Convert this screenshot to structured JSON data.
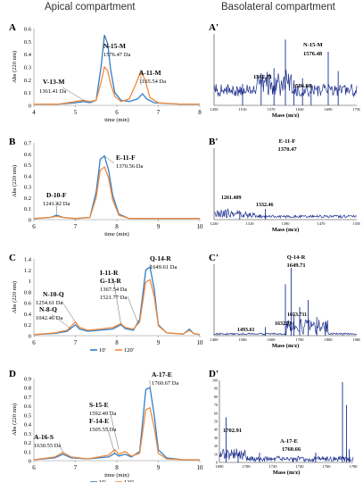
{
  "headers": {
    "left": "Apical compartment",
    "right": "Basolateral compartment"
  },
  "colors": {
    "series_10": "#2f7fc8",
    "series_120": "#f08a3c",
    "ms_line": "#1c2f8c",
    "text": "#222222"
  },
  "chart_data": [
    {
      "id": "A",
      "type": "line",
      "panel_label": "A",
      "xlabel": "time (min)",
      "ylabel": "Abs (220 nm)",
      "xlim": [
        4,
        8
      ],
      "ylim": [
        0,
        0.6
      ],
      "x_ticks": [
        "4",
        "5",
        "6",
        "7",
        "8"
      ],
      "y_ticks": [
        "0",
        "0.1",
        "0.2",
        "0.3",
        "0.4",
        "0.5",
        "0.6"
      ],
      "legend": [
        "10'",
        "120'"
      ],
      "series": [
        {
          "name": "10'",
          "points": [
            [
              4,
              0.01
            ],
            [
              4.6,
              0.01
            ],
            [
              5.0,
              0.02
            ],
            [
              5.2,
              0.03
            ],
            [
              5.35,
              0.02
            ],
            [
              5.5,
              0.04
            ],
            [
              5.62,
              0.3
            ],
            [
              5.7,
              0.55
            ],
            [
              5.78,
              0.48
            ],
            [
              5.85,
              0.28
            ],
            [
              5.95,
              0.1
            ],
            [
              6.1,
              0.04
            ],
            [
              6.3,
              0.03
            ],
            [
              6.5,
              0.05
            ],
            [
              6.62,
              0.09
            ],
            [
              6.72,
              0.05
            ],
            [
              6.9,
              0.02
            ],
            [
              7.5,
              0.01
            ],
            [
              8,
              0.01
            ]
          ]
        },
        {
          "name": "120'",
          "points": [
            [
              4,
              0.01
            ],
            [
              4.6,
              0.01
            ],
            [
              5.0,
              0.03
            ],
            [
              5.2,
              0.04
            ],
            [
              5.35,
              0.03
            ],
            [
              5.5,
              0.04
            ],
            [
              5.62,
              0.18
            ],
            [
              5.7,
              0.3
            ],
            [
              5.78,
              0.27
            ],
            [
              5.85,
              0.17
            ],
            [
              5.95,
              0.07
            ],
            [
              6.1,
              0.03
            ],
            [
              6.3,
              0.05
            ],
            [
              6.45,
              0.16
            ],
            [
              6.58,
              0.27
            ],
            [
              6.68,
              0.2
            ],
            [
              6.8,
              0.06
            ],
            [
              7.0,
              0.02
            ],
            [
              7.5,
              0.01
            ],
            [
              8,
              0.01
            ]
          ]
        }
      ],
      "annotations": [
        {
          "name": "N-15-M",
          "mass": "1576.47 Da",
          "at": [
            5.7,
            0.55
          ]
        },
        {
          "name": "A-11-M",
          "mass": "1165.54 Da",
          "at": [
            6.58,
            0.27
          ]
        },
        {
          "name": "V-13-M",
          "mass": "1361.41 Da",
          "at": [
            5.2,
            0.04
          ]
        }
      ]
    },
    {
      "id": "B",
      "type": "line",
      "panel_label": "B",
      "xlabel": "time (min)",
      "ylabel": "Abs (220 nm)",
      "xlim": [
        6,
        10
      ],
      "ylim": [
        0,
        0.7
      ],
      "x_ticks": [
        "6",
        "7",
        "8",
        "9",
        "10"
      ],
      "y_ticks": [
        "0",
        "0.1",
        "0.2",
        "0.3",
        "0.4",
        "0.5",
        "0.6",
        "0.7"
      ],
      "legend": [
        "10'",
        "120'"
      ],
      "series": [
        {
          "name": "10'",
          "points": [
            [
              6,
              0.01
            ],
            [
              6.4,
              0.02
            ],
            [
              6.55,
              0.04
            ],
            [
              6.7,
              0.02
            ],
            [
              7.0,
              0.01
            ],
            [
              7.35,
              0.02
            ],
            [
              7.5,
              0.25
            ],
            [
              7.6,
              0.55
            ],
            [
              7.7,
              0.58
            ],
            [
              7.8,
              0.45
            ],
            [
              7.9,
              0.22
            ],
            [
              8.05,
              0.05
            ],
            [
              8.3,
              0.01
            ],
            [
              9,
              0.01
            ],
            [
              10,
              0.01
            ]
          ]
        },
        {
          "name": "120'",
          "points": [
            [
              6,
              0.01
            ],
            [
              6.4,
              0.02
            ],
            [
              6.55,
              0.03
            ],
            [
              6.7,
              0.02
            ],
            [
              7.0,
              0.01
            ],
            [
              7.35,
              0.02
            ],
            [
              7.5,
              0.2
            ],
            [
              7.6,
              0.45
            ],
            [
              7.7,
              0.48
            ],
            [
              7.8,
              0.38
            ],
            [
              7.9,
              0.18
            ],
            [
              8.05,
              0.04
            ],
            [
              8.3,
              0.01
            ],
            [
              9,
              0.01
            ],
            [
              10,
              0.01
            ]
          ]
        }
      ],
      "annotations": [
        {
          "name": "E-11-F",
          "mass": "1370.56 Da",
          "at": [
            7.7,
            0.58
          ]
        },
        {
          "name": "D-10-F",
          "mass": "1241.42 Da",
          "at": [
            6.55,
            0.04
          ]
        }
      ]
    },
    {
      "id": "C",
      "type": "line",
      "panel_label": "C",
      "xlabel": "",
      "ylabel": "Abs (220 nm)",
      "xlim": [
        6,
        10
      ],
      "ylim": [
        0,
        1.4
      ],
      "x_ticks": [
        "6",
        "7",
        "8",
        "9",
        "10"
      ],
      "y_ticks": [
        "0",
        "0.2",
        "0.4",
        "0.6",
        "0.8",
        "1",
        "1.2",
        "1.4"
      ],
      "legend": [
        "10'",
        "120'"
      ],
      "series": [
        {
          "name": "10'",
          "points": [
            [
              6,
              0.02
            ],
            [
              6.5,
              0.04
            ],
            [
              6.8,
              0.08
            ],
            [
              7.0,
              0.2
            ],
            [
              7.1,
              0.12
            ],
            [
              7.3,
              0.08
            ],
            [
              7.6,
              0.1
            ],
            [
              7.9,
              0.12
            ],
            [
              8.1,
              0.2
            ],
            [
              8.2,
              0.13
            ],
            [
              8.4,
              0.1
            ],
            [
              8.55,
              0.3
            ],
            [
              8.7,
              1.2
            ],
            [
              8.8,
              1.25
            ],
            [
              8.9,
              0.85
            ],
            [
              9.0,
              0.2
            ],
            [
              9.2,
              0.05
            ],
            [
              9.6,
              0.03
            ],
            [
              9.75,
              0.12
            ],
            [
              9.85,
              0.04
            ],
            [
              10,
              0.02
            ]
          ]
        },
        {
          "name": "120'",
          "points": [
            [
              6,
              0.02
            ],
            [
              6.5,
              0.05
            ],
            [
              6.8,
              0.1
            ],
            [
              7.0,
              0.25
            ],
            [
              7.1,
              0.15
            ],
            [
              7.3,
              0.1
            ],
            [
              7.6,
              0.12
            ],
            [
              7.9,
              0.15
            ],
            [
              8.1,
              0.22
            ],
            [
              8.2,
              0.15
            ],
            [
              8.4,
              0.12
            ],
            [
              8.55,
              0.25
            ],
            [
              8.7,
              0.98
            ],
            [
              8.8,
              1.02
            ],
            [
              8.9,
              0.72
            ],
            [
              9.0,
              0.18
            ],
            [
              9.2,
              0.05
            ],
            [
              9.6,
              0.03
            ],
            [
              9.75,
              0.1
            ],
            [
              9.85,
              0.04
            ],
            [
              10,
              0.02
            ]
          ]
        }
      ],
      "annotations": [
        {
          "name": "Q-14-R",
          "mass": "1649.61 Da",
          "at": [
            8.8,
            1.25
          ]
        },
        {
          "name": "I-11-R",
          "mass": "",
          "at": [
            8.1,
            0.2
          ]
        },
        {
          "name": "G-13-R",
          "mass": "1367.54 Da",
          "at": [
            8.1,
            0.22
          ]
        },
        {
          "name": "",
          "mass": "1521.77 Da",
          "at": [
            8.5,
            0.25
          ]
        },
        {
          "name": "N-10-Q",
          "mass": "1254.61 Da",
          "at": [
            7.0,
            0.25
          ]
        },
        {
          "name": "N-8-Q",
          "mass": "1042.46 Da",
          "at": [
            6.9,
            0.12
          ]
        }
      ]
    },
    {
      "id": "D",
      "type": "line",
      "panel_label": "D",
      "xlabel": "time (min)",
      "ylabel": "Abs (220 nm)",
      "xlim": [
        6,
        10
      ],
      "ylim": [
        0,
        0.9
      ],
      "x_ticks": [
        "6",
        "7",
        "8",
        "9",
        "10"
      ],
      "y_ticks": [
        "0",
        "0.1",
        "0.2",
        "0.3",
        "0.4",
        "0.5",
        "0.6",
        "0.7",
        "0.8",
        "0.9"
      ],
      "legend": [
        "10'",
        "120'"
      ],
      "series": [
        {
          "name": "10'",
          "points": [
            [
              6,
              0.01
            ],
            [
              6.5,
              0.03
            ],
            [
              6.7,
              0.07
            ],
            [
              6.9,
              0.03
            ],
            [
              7.3,
              0.02
            ],
            [
              7.8,
              0.04
            ],
            [
              7.95,
              0.08
            ],
            [
              8.05,
              0.05
            ],
            [
              8.2,
              0.07
            ],
            [
              8.35,
              0.04
            ],
            [
              8.55,
              0.1
            ],
            [
              8.7,
              0.78
            ],
            [
              8.8,
              0.8
            ],
            [
              8.9,
              0.5
            ],
            [
              9.0,
              0.12
            ],
            [
              9.2,
              0.03
            ],
            [
              9.6,
              0.01
            ],
            [
              10,
              0.01
            ]
          ]
        },
        {
          "name": "120'",
          "points": [
            [
              6,
              0.01
            ],
            [
              6.5,
              0.04
            ],
            [
              6.7,
              0.09
            ],
            [
              6.9,
              0.04
            ],
            [
              7.3,
              0.02
            ],
            [
              7.8,
              0.06
            ],
            [
              7.95,
              0.12
            ],
            [
              8.05,
              0.07
            ],
            [
              8.2,
              0.1
            ],
            [
              8.35,
              0.05
            ],
            [
              8.55,
              0.08
            ],
            [
              8.7,
              0.56
            ],
            [
              8.8,
              0.58
            ],
            [
              8.9,
              0.36
            ],
            [
              9.0,
              0.08
            ],
            [
              9.2,
              0.02
            ],
            [
              9.6,
              0.01
            ],
            [
              10,
              0.01
            ]
          ]
        }
      ],
      "annotations": [
        {
          "name": "A-17-E",
          "mass": "1760.67 Da",
          "at": [
            8.8,
            0.8
          ]
        },
        {
          "name": "S-15-E",
          "mass": "1592.49 Da",
          "at": [
            8.05,
            0.12
          ]
        },
        {
          "name": "F-14-E",
          "mass": "1505.55 Da",
          "at": [
            7.95,
            0.08
          ]
        },
        {
          "name": "A-16-S",
          "mass": "1630.55 Da",
          "at": [
            6.7,
            0.09
          ]
        }
      ]
    },
    {
      "id": "A'",
      "type": "line",
      "panel_label": "A'",
      "xlabel": "Mass (m/z)",
      "ylabel": "",
      "x_ticks": [
        "1450",
        "1510",
        "1570",
        "1630",
        "1690",
        "1750"
      ],
      "peak_labels": [
        "N-15-M",
        "1576.48",
        "1562.71",
        "1586.68"
      ]
    },
    {
      "id": "B'",
      "type": "line",
      "panel_label": "B'",
      "xlabel": "Mass (m/z)",
      "ylabel": "",
      "x_ticks": [
        "1230",
        "1310",
        "1390",
        "1470",
        "1550"
      ],
      "peak_labels": [
        "E-11-F",
        "1370.47",
        "1261.409",
        "1332.46"
      ]
    },
    {
      "id": "C'",
      "type": "line",
      "panel_label": "C'",
      "xlabel": "Mass (m/z)",
      "ylabel": "",
      "x_ticks": [
        "1400",
        "1500",
        "1600",
        "1700",
        "1800",
        "1900"
      ],
      "peak_labels": [
        "Q-14-R",
        "1649.71",
        "1493.61",
        "1632.70",
        "1653.711"
      ]
    },
    {
      "id": "D'",
      "type": "line",
      "panel_label": "D'",
      "xlabel": "Mass (m/z)",
      "ylabel": "",
      "y_ticks": [
        "100",
        "90",
        "80",
        "70",
        "60",
        "50",
        "40",
        "30",
        "20",
        "10",
        "0"
      ],
      "x_ticks": [
        "1690",
        "1700",
        "1720",
        "1740",
        "1760",
        "1780"
      ],
      "peak_labels": [
        "1702.91",
        "A-17-E",
        "1760.66"
      ]
    }
  ]
}
